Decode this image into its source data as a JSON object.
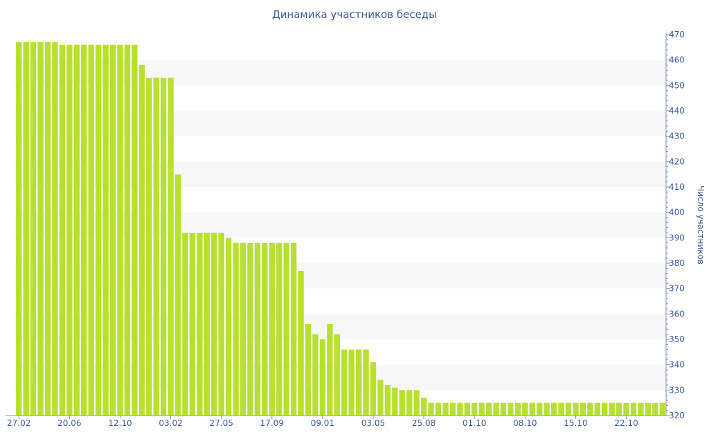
{
  "chart_data": {
    "type": "bar",
    "title": "Динамика участников беседы",
    "xlabel": "",
    "ylabel": "Число участников",
    "ylim": [
      320,
      470
    ],
    "y_ticks": [
      320,
      330,
      340,
      350,
      360,
      370,
      380,
      390,
      400,
      410,
      420,
      430,
      440,
      450,
      460,
      470
    ],
    "y_axis_position": "right",
    "grid": "horizontal alternating bands",
    "legend": "none",
    "x_tick_labels": [
      {
        "index": 0,
        "label": "27.02"
      },
      {
        "index": 7,
        "label": "20.06"
      },
      {
        "index": 14,
        "label": "12.10"
      },
      {
        "index": 21,
        "label": "03.02"
      },
      {
        "index": 28,
        "label": "27.05"
      },
      {
        "index": 35,
        "label": "17.09"
      },
      {
        "index": 42,
        "label": "09.01"
      },
      {
        "index": 49,
        "label": "03.05"
      },
      {
        "index": 56,
        "label": "25.08"
      },
      {
        "index": 63,
        "label": "01.10"
      },
      {
        "index": 70,
        "label": "08.10"
      },
      {
        "index": 77,
        "label": "15.10"
      },
      {
        "index": 84,
        "label": "22.10"
      }
    ],
    "values": [
      467,
      467,
      467,
      467,
      467,
      467,
      466,
      466,
      466,
      466,
      466,
      466,
      466,
      466,
      466,
      466,
      466,
      458,
      453,
      453,
      453,
      453,
      415,
      392,
      392,
      392,
      392,
      392,
      392,
      390,
      388,
      388,
      388,
      388,
      388,
      388,
      388,
      388,
      388,
      377,
      356,
      352,
      350,
      356,
      352,
      346,
      346,
      346,
      346,
      341,
      334,
      332,
      331,
      330,
      330,
      330,
      327,
      325,
      325,
      325,
      325,
      325,
      325,
      325,
      325,
      325,
      325,
      325,
      325,
      325,
      325,
      325,
      325,
      325,
      325,
      325,
      325,
      325,
      325,
      325,
      325,
      325,
      325,
      325,
      325,
      325,
      325,
      325,
      325,
      325
    ],
    "colors": {
      "bar": "#b8e02e",
      "band": "#f7f7f7",
      "axis": "#7a90b8",
      "text": "#3d5a99"
    }
  }
}
